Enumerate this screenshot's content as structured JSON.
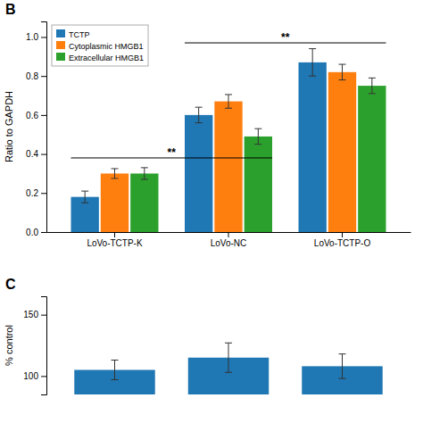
{
  "chart_data": [
    {
      "type": "bar",
      "title": "B",
      "ylabel": "Ratio to GAPDH",
      "categories": [
        "LoVo-TCTP-K",
        "LoVo-NC",
        "LoVo-TCTP-O"
      ],
      "series": [
        {
          "name": "TCTP",
          "values": [
            0.18,
            0.6,
            0.87
          ],
          "errors": [
            0.03,
            0.04,
            0.07
          ]
        },
        {
          "name": "Cytoplasmic HMGB1",
          "values": [
            0.3,
            0.67,
            0.82
          ],
          "errors": [
            0.025,
            0.035,
            0.04
          ]
        },
        {
          "name": "Extracellular HMGB1",
          "values": [
            0.3,
            0.49,
            0.75
          ],
          "errors": [
            0.03,
            0.04,
            0.04
          ]
        }
      ],
      "ylim": [
        0,
        1.08
      ],
      "yticks": [
        {
          "value": 0,
          "label": "0.0"
        },
        0.2,
        0.4,
        0.6,
        0.8,
        {
          "value": 1,
          "label": "1.0"
        }
      ],
      "legend": "upper left",
      "annotations": [
        {
          "text": "**",
          "y": 0.38,
          "from": "LoVo-TCTP-K",
          "to": "LoVo-NC"
        },
        {
          "text": "**",
          "y": 0.97,
          "from": "LoVo-NC",
          "to": "LoVo-TCTP-O"
        }
      ]
    },
    {
      "type": "bar",
      "title": "C",
      "ylabel": "% control",
      "categories": [
        null,
        null,
        null
      ],
      "values": [
        105,
        115,
        108
      ],
      "errors": [
        8,
        12,
        10
      ],
      "ylim": [
        85,
        165
      ],
      "yticks": [
        100,
        150
      ],
      "tick_labels": "y"
    }
  ]
}
